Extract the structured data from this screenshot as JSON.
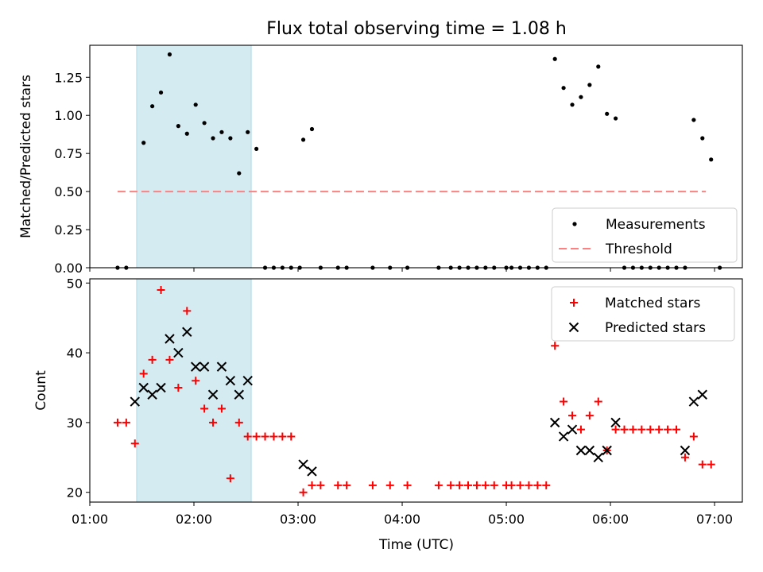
{
  "chart_data": {
    "title": "Flux total observing time = 1.08 h",
    "xlabel": "Time (UTC)",
    "x_ticks": [
      "01:00",
      "02:00",
      "03:00",
      "04:00",
      "05:00",
      "06:00",
      "07:00"
    ],
    "xlim": [
      "01:00",
      "07:16"
    ],
    "shaded_region": {
      "start": "01:27",
      "end": "02:33",
      "color": "#add8e6"
    },
    "panels": [
      {
        "type": "scatter",
        "ylabel": "Matched/Predicted stars",
        "ylim": [
          0,
          1.46
        ],
        "y_ticks": [
          "0.00",
          "0.25",
          "0.50",
          "0.75",
          "1.00",
          "1.25"
        ],
        "threshold": {
          "name": "Threshold",
          "value": 0.5,
          "x_range": [
            "01:16",
            "06:55"
          ],
          "color": "#ff8080"
        },
        "legend": {
          "position": "lower right",
          "entries": [
            "Measurements",
            "Threshold"
          ]
        },
        "series": [
          {
            "name": "Measurements",
            "color": "#000000",
            "marker": "dot",
            "points": [
              [
                "01:16",
                0
              ],
              [
                "01:21",
                0
              ],
              [
                "01:31",
                0.82
              ],
              [
                "01:36",
                1.06
              ],
              [
                "01:41",
                1.15
              ],
              [
                "01:46",
                1.4
              ],
              [
                "01:51",
                0.93
              ],
              [
                "01:56",
                0.88
              ],
              [
                "02:01",
                1.07
              ],
              [
                "02:06",
                0.95
              ],
              [
                "02:11",
                0.85
              ],
              [
                "02:16",
                0.89
              ],
              [
                "02:21",
                0.85
              ],
              [
                "02:26",
                0.62
              ],
              [
                "02:31",
                0.89
              ],
              [
                "02:36",
                0.78
              ],
              [
                "02:41",
                0
              ],
              [
                "02:46",
                0
              ],
              [
                "02:51",
                0
              ],
              [
                "02:56",
                0
              ],
              [
                "03:01",
                0
              ],
              [
                "03:03",
                0.84
              ],
              [
                "03:08",
                0.91
              ],
              [
                "03:13",
                0
              ],
              [
                "03:23",
                0
              ],
              [
                "03:28",
                0
              ],
              [
                "03:43",
                0
              ],
              [
                "03:53",
                0
              ],
              [
                "04:03",
                0
              ],
              [
                "04:21",
                0
              ],
              [
                "04:28",
                0
              ],
              [
                "04:33",
                0
              ],
              [
                "04:38",
                0
              ],
              [
                "04:43",
                0
              ],
              [
                "04:48",
                0
              ],
              [
                "04:53",
                0
              ],
              [
                "05:00",
                0
              ],
              [
                "05:03",
                0
              ],
              [
                "05:08",
                0
              ],
              [
                "05:13",
                0
              ],
              [
                "05:18",
                0
              ],
              [
                "05:23",
                0
              ],
              [
                "05:28",
                1.37
              ],
              [
                "05:33",
                1.18
              ],
              [
                "05:38",
                1.07
              ],
              [
                "05:43",
                1.12
              ],
              [
                "05:48",
                1.2
              ],
              [
                "05:53",
                1.32
              ],
              [
                "05:58",
                1.01
              ],
              [
                "06:03",
                0.98
              ],
              [
                "06:08",
                0
              ],
              [
                "06:13",
                0
              ],
              [
                "06:18",
                0
              ],
              [
                "06:23",
                0
              ],
              [
                "06:28",
                0
              ],
              [
                "06:33",
                0
              ],
              [
                "06:38",
                0
              ],
              [
                "06:43",
                0
              ],
              [
                "06:48",
                0.97
              ],
              [
                "06:53",
                0.85
              ],
              [
                "06:58",
                0.71
              ],
              [
                "07:03",
                0
              ]
            ]
          }
        ]
      },
      {
        "type": "scatter",
        "ylabel": "Count",
        "ylim": [
          18.6,
          50.6
        ],
        "y_ticks": [
          "20",
          "30",
          "40",
          "50"
        ],
        "legend": {
          "position": "upper right",
          "entries": [
            "Matched stars",
            "Predicted stars"
          ]
        },
        "series": [
          {
            "name": "Matched stars",
            "color": "#ff0000",
            "marker": "plus",
            "points": [
              [
                "01:16",
                30
              ],
              [
                "01:21",
                30
              ],
              [
                "01:26",
                27
              ],
              [
                "01:31",
                37
              ],
              [
                "01:36",
                39
              ],
              [
                "01:41",
                49
              ],
              [
                "01:46",
                39
              ],
              [
                "01:51",
                35
              ],
              [
                "01:56",
                46
              ],
              [
                "02:01",
                36
              ],
              [
                "02:06",
                32
              ],
              [
                "02:11",
                30
              ],
              [
                "02:16",
                32
              ],
              [
                "02:21",
                22
              ],
              [
                "02:26",
                30
              ],
              [
                "02:31",
                28
              ],
              [
                "02:36",
                28
              ],
              [
                "02:41",
                28
              ],
              [
                "02:46",
                28
              ],
              [
                "02:51",
                28
              ],
              [
                "02:56",
                28
              ],
              [
                "03:03",
                20
              ],
              [
                "03:08",
                21
              ],
              [
                "03:13",
                21
              ],
              [
                "03:23",
                21
              ],
              [
                "03:28",
                21
              ],
              [
                "03:43",
                21
              ],
              [
                "03:53",
                21
              ],
              [
                "04:03",
                21
              ],
              [
                "04:21",
                21
              ],
              [
                "04:28",
                21
              ],
              [
                "04:33",
                21
              ],
              [
                "04:38",
                21
              ],
              [
                "04:43",
                21
              ],
              [
                "04:48",
                21
              ],
              [
                "04:53",
                21
              ],
              [
                "05:00",
                21
              ],
              [
                "05:03",
                21
              ],
              [
                "05:08",
                21
              ],
              [
                "05:13",
                21
              ],
              [
                "05:18",
                21
              ],
              [
                "05:23",
                21
              ],
              [
                "05:28",
                41
              ],
              [
                "05:33",
                33
              ],
              [
                "05:38",
                31
              ],
              [
                "05:43",
                29
              ],
              [
                "05:48",
                31
              ],
              [
                "05:53",
                33
              ],
              [
                "05:58",
                26
              ],
              [
                "06:03",
                29
              ],
              [
                "06:08",
                29
              ],
              [
                "06:13",
                29
              ],
              [
                "06:18",
                29
              ],
              [
                "06:23",
                29
              ],
              [
                "06:28",
                29
              ],
              [
                "06:33",
                29
              ],
              [
                "06:38",
                29
              ],
              [
                "06:43",
                25
              ],
              [
                "06:48",
                28
              ],
              [
                "06:53",
                24
              ],
              [
                "06:58",
                24
              ]
            ]
          },
          {
            "name": "Predicted stars",
            "color": "#000000",
            "marker": "x",
            "points": [
              [
                "01:26",
                33
              ],
              [
                "01:31",
                35
              ],
              [
                "01:36",
                34
              ],
              [
                "01:41",
                35
              ],
              [
                "01:46",
                42
              ],
              [
                "01:51",
                40
              ],
              [
                "01:56",
                43
              ],
              [
                "02:01",
                38
              ],
              [
                "02:06",
                38
              ],
              [
                "02:11",
                34
              ],
              [
                "02:16",
                38
              ],
              [
                "02:21",
                36
              ],
              [
                "02:26",
                34
              ],
              [
                "02:31",
                36
              ],
              [
                "03:03",
                24
              ],
              [
                "03:08",
                23
              ],
              [
                "05:28",
                30
              ],
              [
                "05:33",
                28
              ],
              [
                "05:38",
                29
              ],
              [
                "05:43",
                26
              ],
              [
                "05:48",
                26
              ],
              [
                "05:53",
                25
              ],
              [
                "05:58",
                26
              ],
              [
                "06:03",
                30
              ],
              [
                "06:43",
                26
              ],
              [
                "06:48",
                33
              ],
              [
                "06:53",
                34
              ]
            ]
          }
        ]
      }
    ]
  }
}
